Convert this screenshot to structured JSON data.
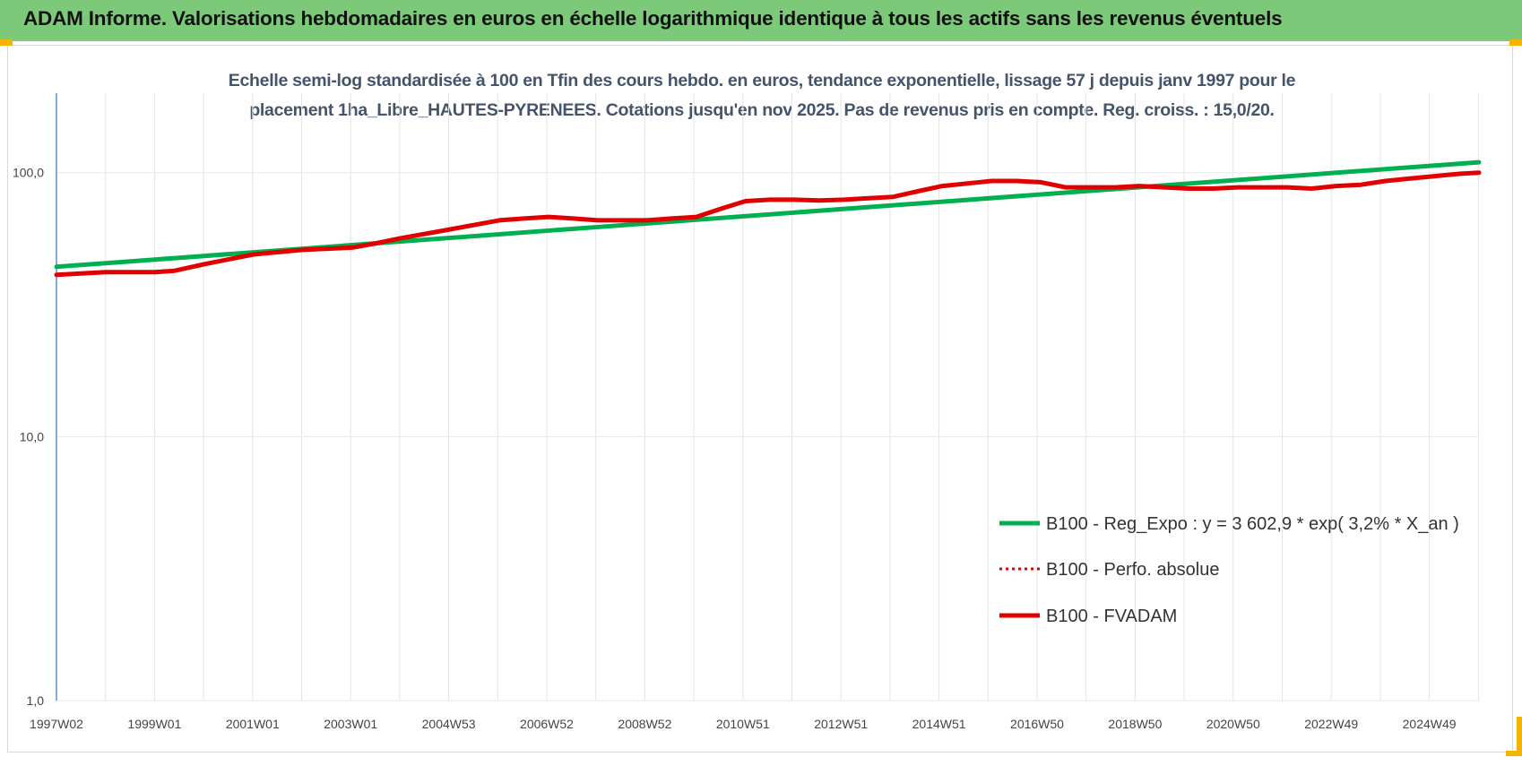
{
  "banner": {
    "title": "ADAM Informe. Valorisations hebdomadaires en euros en échelle logarithmique identique à tous les actifs sans les revenus éventuels"
  },
  "colors": {
    "banner_bg": "#7dc97a",
    "reg_line": "#00b050",
    "perf_line": "#e00000",
    "fvadam_line": "#e00000"
  },
  "chart_data": {
    "type": "line",
    "title_lines": [
      "Echelle semi-log standardisée à 100 en Tfin des cours hebdo. en euros, tendance exponentielle, lissage 57 j depuis janv 1997 pour le",
      "placement 1ha_Libre_HAUTES-PYRENEES. Cotations jusqu'en nov 2025. Pas de revenus pris en compte. Reg. croiss. : 15,0/20."
    ],
    "xlabel": "",
    "ylabel": "",
    "y_scale": "log",
    "ylim": [
      1,
      200
    ],
    "xlim": [
      1997.0,
      2025.9
    ],
    "y_ticks": [
      "1,0",
      "10,0",
      "100,0"
    ],
    "x_ticks": [
      "1997W02",
      "1999W01",
      "2001W01",
      "2003W01",
      "2004W53",
      "2006W52",
      "2008W52",
      "2010W51",
      "2012W51",
      "2014W51",
      "2016W50",
      "2018W50",
      "2020W50",
      "2022W49",
      "2024W49"
    ],
    "legend_position": "lower-right",
    "grid": "vertical",
    "series": [
      {
        "name": "B100 - Reg_Expo : y = 3 602,9 * exp( 3,2% *  X_an )",
        "style": "solid",
        "x": [
          1997.0,
          2025.9
        ],
        "y": [
          44.0,
          109.5
        ]
      },
      {
        "name": "B100 - Perfo. absolue",
        "style": "dotted",
        "x": [],
        "y": []
      },
      {
        "name": "B100 - FVADAM",
        "style": "solid",
        "x": [
          1997.0,
          1998.0,
          1999.0,
          1999.4,
          2000.0,
          2001.0,
          2002.0,
          2003.0,
          2003.5,
          2004.0,
          2005.0,
          2006.0,
          2006.5,
          2007.0,
          2007.5,
          2008.0,
          2009.0,
          2009.5,
          2010.0,
          2010.5,
          2011.0,
          2011.5,
          2012.0,
          2012.5,
          2013.0,
          2013.5,
          2014.0,
          2014.5,
          2015.0,
          2015.5,
          2016.0,
          2016.5,
          2017.0,
          2017.5,
          2018.0,
          2018.5,
          2019.0,
          2019.5,
          2020.0,
          2020.5,
          2021.0,
          2021.5,
          2022.0,
          2022.5,
          2023.0,
          2023.5,
          2024.0,
          2024.5,
          2025.0,
          2025.5,
          2025.9
        ],
        "y": [
          41.0,
          42.0,
          42.0,
          42.5,
          45.0,
          49.0,
          51.0,
          52.0,
          54.0,
          56.5,
          61.0,
          66.0,
          67.0,
          68.0,
          67.0,
          66.0,
          66.0,
          67.0,
          68.0,
          73.0,
          78.0,
          79.0,
          79.0,
          78.5,
          79.0,
          80.0,
          81.0,
          85.0,
          89.0,
          91.0,
          93.0,
          93.0,
          92.0,
          88.0,
          88.0,
          88.0,
          89.0,
          88.0,
          87.0,
          87.0,
          88.0,
          88.0,
          88.0,
          87.0,
          89.0,
          90.0,
          93.0,
          95.0,
          97.0,
          99.0,
          100.0
        ]
      }
    ]
  }
}
